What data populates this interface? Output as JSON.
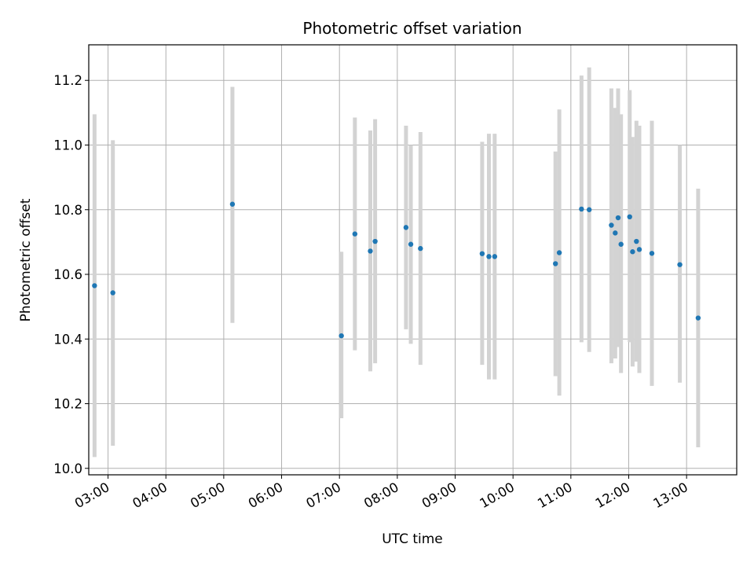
{
  "chart_data": {
    "type": "scatter",
    "title": "Photometric offset variation",
    "xlabel": "UTC time",
    "ylabel": "Photometric offset",
    "x_ticks": [
      "03:00",
      "04:00",
      "05:00",
      "06:00",
      "07:00",
      "08:00",
      "09:00",
      "10:00",
      "11:00",
      "12:00",
      "13:00"
    ],
    "y_ticks": [
      "10.0",
      "10.2",
      "10.4",
      "10.6",
      "10.8",
      "11.0",
      "11.2"
    ],
    "xlim": [
      "02:40",
      "13:52"
    ],
    "ylim": [
      9.98,
      11.31
    ],
    "grid": true,
    "point_color": "#1f77b4",
    "errorbar_color": "#d3d3d3",
    "points": [
      {
        "t": "02:46",
        "y": 10.565,
        "lo": 10.035,
        "hi": 11.095
      },
      {
        "t": "03:05",
        "y": 10.543,
        "lo": 10.07,
        "hi": 11.015
      },
      {
        "t": "05:09",
        "y": 10.817,
        "lo": 10.45,
        "hi": 11.18
      },
      {
        "t": "07:02",
        "y": 10.41,
        "lo": 10.155,
        "hi": 10.67
      },
      {
        "t": "07:16",
        "y": 10.725,
        "lo": 10.365,
        "hi": 11.085
      },
      {
        "t": "07:32",
        "y": 10.672,
        "lo": 10.3,
        "hi": 11.045
      },
      {
        "t": "07:37",
        "y": 10.702,
        "lo": 10.325,
        "hi": 11.08
      },
      {
        "t": "08:09",
        "y": 10.745,
        "lo": 10.43,
        "hi": 11.06
      },
      {
        "t": "08:14",
        "y": 10.693,
        "lo": 10.385,
        "hi": 11.0
      },
      {
        "t": "08:24",
        "y": 10.68,
        "lo": 10.32,
        "hi": 11.04
      },
      {
        "t": "09:28",
        "y": 10.664,
        "lo": 10.32,
        "hi": 11.01
      },
      {
        "t": "09:35",
        "y": 10.655,
        "lo": 10.275,
        "hi": 11.035
      },
      {
        "t": "09:41",
        "y": 10.655,
        "lo": 10.275,
        "hi": 11.035
      },
      {
        "t": "10:44",
        "y": 10.633,
        "lo": 10.285,
        "hi": 10.98
      },
      {
        "t": "10:48",
        "y": 10.667,
        "lo": 10.225,
        "hi": 11.11
      },
      {
        "t": "11:11",
        "y": 10.802,
        "lo": 10.39,
        "hi": 11.215
      },
      {
        "t": "11:19",
        "y": 10.8,
        "lo": 10.36,
        "hi": 11.24
      },
      {
        "t": "11:42",
        "y": 10.752,
        "lo": 10.325,
        "hi": 11.175
      },
      {
        "t": "11:46",
        "y": 10.728,
        "lo": 10.34,
        "hi": 11.115
      },
      {
        "t": "11:49",
        "y": 10.775,
        "lo": 10.375,
        "hi": 11.175
      },
      {
        "t": "11:52",
        "y": 10.693,
        "lo": 10.295,
        "hi": 11.095
      },
      {
        "t": "12:01",
        "y": 10.778,
        "lo": 10.39,
        "hi": 11.17
      },
      {
        "t": "12:04",
        "y": 10.67,
        "lo": 10.315,
        "hi": 11.025
      },
      {
        "t": "12:08",
        "y": 10.702,
        "lo": 10.33,
        "hi": 11.075
      },
      {
        "t": "12:11",
        "y": 10.677,
        "lo": 10.295,
        "hi": 11.06
      },
      {
        "t": "12:24",
        "y": 10.665,
        "lo": 10.255,
        "hi": 11.075
      },
      {
        "t": "12:53",
        "y": 10.63,
        "lo": 10.265,
        "hi": 11.0
      },
      {
        "t": "13:12",
        "y": 10.465,
        "lo": 10.065,
        "hi": 10.865
      }
    ]
  }
}
